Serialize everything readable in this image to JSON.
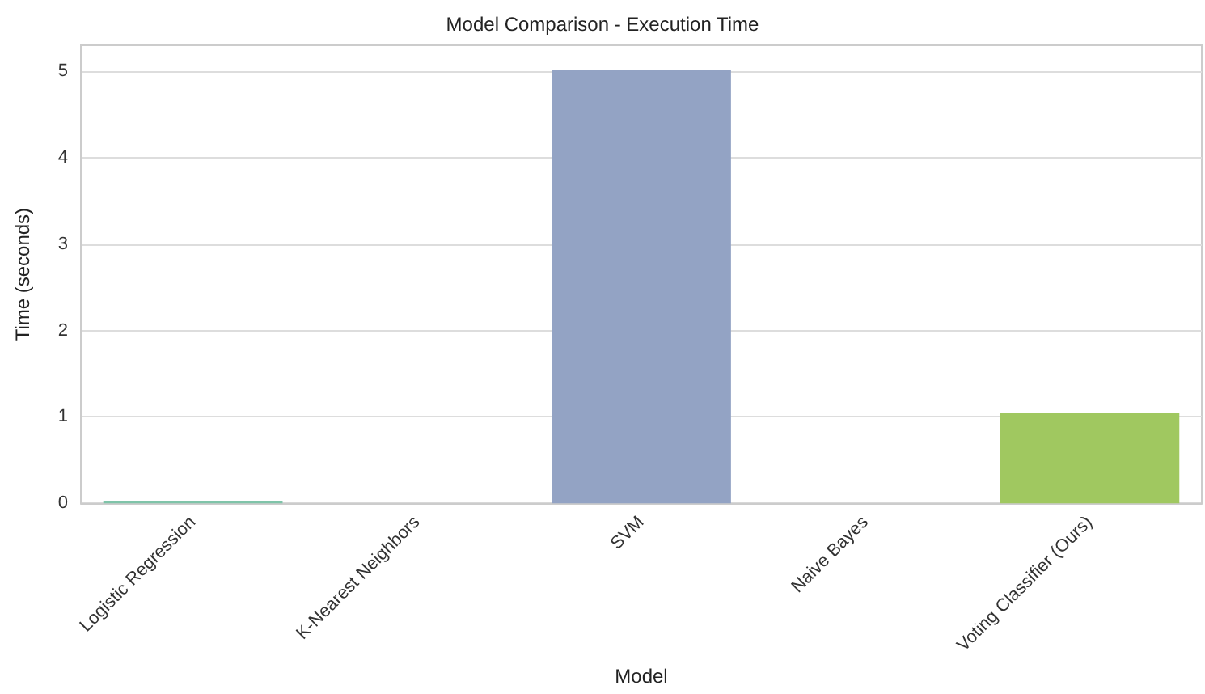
{
  "chart_data": {
    "type": "bar",
    "title": "Model Comparison - Execution Time",
    "xlabel": "Model",
    "ylabel": "Time (seconds)",
    "categories": [
      "Logistic Regression",
      "K-Nearest Neighbors",
      "SVM",
      "Naive Bayes",
      "Voting Classifier (Ours)"
    ],
    "values": [
      0.02,
      0,
      5.01,
      0,
      1.05
    ],
    "colors": [
      "#7fc4a9",
      "#f4a582",
      "#93a3c4",
      "#e29ac4",
      "#a0c860"
    ],
    "ylim": [
      0,
      5.3
    ],
    "yticks": [
      0,
      1,
      2,
      3,
      4,
      5
    ],
    "grid": "y"
  }
}
